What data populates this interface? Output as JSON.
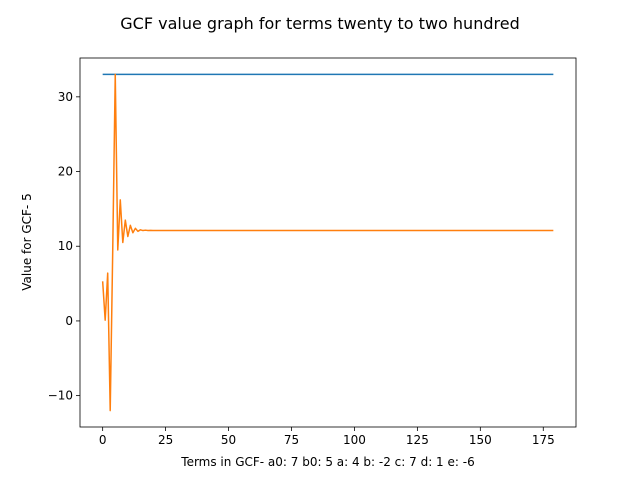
{
  "chart_data": {
    "type": "line",
    "title": "GCF value graph for terms twenty to two hundred",
    "xlabel": "Terms in GCF-  a0: 7 b0: 5 a: 4 b: -2 c: 7 d: 1 e: -6",
    "ylabel": "Value for GCF- 5",
    "xlim": [
      -9,
      188
    ],
    "ylim": [
      -14.2,
      35.2
    ],
    "xticks": [
      0,
      25,
      50,
      75,
      100,
      125,
      150,
      175
    ],
    "xtick_labels": [
      "0",
      "25",
      "50",
      "75",
      "100",
      "125",
      "150",
      "175"
    ],
    "yticks": [
      -10,
      0,
      10,
      20,
      30
    ],
    "ytick_labels": [
      "−10",
      "0",
      "10",
      "20",
      "30"
    ],
    "grid": false,
    "series": [
      {
        "color": "#1f77b4",
        "x": [
          0,
          179
        ],
        "y": [
          33.0,
          33.0
        ]
      },
      {
        "color": "#ff7f0e",
        "x": [
          0,
          1,
          2,
          3,
          4,
          5,
          6,
          7,
          8,
          9,
          10,
          11,
          12,
          13,
          14,
          15,
          16,
          17,
          18,
          19,
          20,
          30,
          50,
          100,
          150,
          179
        ],
        "y": [
          5.3,
          0.1,
          6.4,
          -12.0,
          9.5,
          33.0,
          9.5,
          16.2,
          10.5,
          13.5,
          11.3,
          12.8,
          11.8,
          12.4,
          12.0,
          12.2,
          12.1,
          12.15,
          12.1,
          12.12,
          12.1,
          12.1,
          12.1,
          12.1,
          12.1,
          12.1
        ]
      }
    ]
  }
}
